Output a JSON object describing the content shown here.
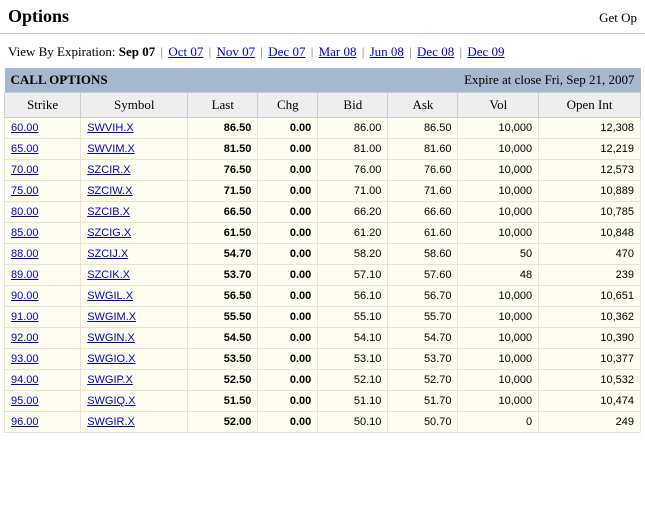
{
  "header": {
    "title": "Options",
    "top_right": "Get Op"
  },
  "view_by": {
    "label": "View By Expiration:",
    "current": "Sep 07",
    "others": [
      "Oct 07",
      "Nov 07",
      "Dec 07",
      "Mar 08",
      "Jun 08",
      "Dec 08",
      "Dec 09"
    ]
  },
  "band": {
    "title": "CALL OPTIONS",
    "expiration": "Expire at close Fri, Sep 21, 2007"
  },
  "columns": [
    "Strike",
    "Symbol",
    "Last",
    "Chg",
    "Bid",
    "Ask",
    "Vol",
    "Open Int"
  ],
  "rows": [
    {
      "strike": "60.00",
      "symbol": "SWVIH.X",
      "last": "86.50",
      "chg": "0.00",
      "bid": "86.00",
      "ask": "86.50",
      "vol": "10,000",
      "oi": "12,308"
    },
    {
      "strike": "65.00",
      "symbol": "SWVIM.X",
      "last": "81.50",
      "chg": "0.00",
      "bid": "81.00",
      "ask": "81.60",
      "vol": "10,000",
      "oi": "12,219"
    },
    {
      "strike": "70.00",
      "symbol": "SZCIR.X",
      "last": "76.50",
      "chg": "0.00",
      "bid": "76.00",
      "ask": "76.60",
      "vol": "10,000",
      "oi": "12,573"
    },
    {
      "strike": "75.00",
      "symbol": "SZCIW.X",
      "last": "71.50",
      "chg": "0.00",
      "bid": "71.00",
      "ask": "71.60",
      "vol": "10,000",
      "oi": "10,889"
    },
    {
      "strike": "80.00",
      "symbol": "SZCIB.X",
      "last": "66.50",
      "chg": "0.00",
      "bid": "66.20",
      "ask": "66.60",
      "vol": "10,000",
      "oi": "10,785"
    },
    {
      "strike": "85.00",
      "symbol": "SZCIG.X",
      "last": "61.50",
      "chg": "0.00",
      "bid": "61.20",
      "ask": "61.60",
      "vol": "10,000",
      "oi": "10,848"
    },
    {
      "strike": "88.00",
      "symbol": "SZCIJ.X",
      "last": "54.70",
      "chg": "0.00",
      "bid": "58.20",
      "ask": "58.60",
      "vol": "50",
      "oi": "470"
    },
    {
      "strike": "89.00",
      "symbol": "SZCIK.X",
      "last": "53.70",
      "chg": "0.00",
      "bid": "57.10",
      "ask": "57.60",
      "vol": "48",
      "oi": "239"
    },
    {
      "strike": "90.00",
      "symbol": "SWGIL.X",
      "last": "56.50",
      "chg": "0.00",
      "bid": "56.10",
      "ask": "56.70",
      "vol": "10,000",
      "oi": "10,651"
    },
    {
      "strike": "91.00",
      "symbol": "SWGIM.X",
      "last": "55.50",
      "chg": "0.00",
      "bid": "55.10",
      "ask": "55.70",
      "vol": "10,000",
      "oi": "10,362"
    },
    {
      "strike": "92.00",
      "symbol": "SWGIN.X",
      "last": "54.50",
      "chg": "0.00",
      "bid": "54.10",
      "ask": "54.70",
      "vol": "10,000",
      "oi": "10,390"
    },
    {
      "strike": "93.00",
      "symbol": "SWGIO.X",
      "last": "53.50",
      "chg": "0.00",
      "bid": "53.10",
      "ask": "53.70",
      "vol": "10,000",
      "oi": "10,377"
    },
    {
      "strike": "94.00",
      "symbol": "SWGIP.X",
      "last": "52.50",
      "chg": "0.00",
      "bid": "52.10",
      "ask": "52.70",
      "vol": "10,000",
      "oi": "10,532"
    },
    {
      "strike": "95.00",
      "symbol": "SWGIQ.X",
      "last": "51.50",
      "chg": "0.00",
      "bid": "51.10",
      "ask": "51.70",
      "vol": "10,000",
      "oi": "10,474"
    },
    {
      "strike": "96.00",
      "symbol": "SWGIR.X",
      "last": "52.00",
      "chg": "0.00",
      "bid": "50.10",
      "ask": "50.70",
      "vol": "0",
      "oi": "249"
    }
  ],
  "style": {
    "band_bg": "#a5b8ce",
    "header_bg": "#eeeeee",
    "row_bg": "#fefef0",
    "link_color": "#0000cc",
    "border_color": "#e6e6d0"
  }
}
